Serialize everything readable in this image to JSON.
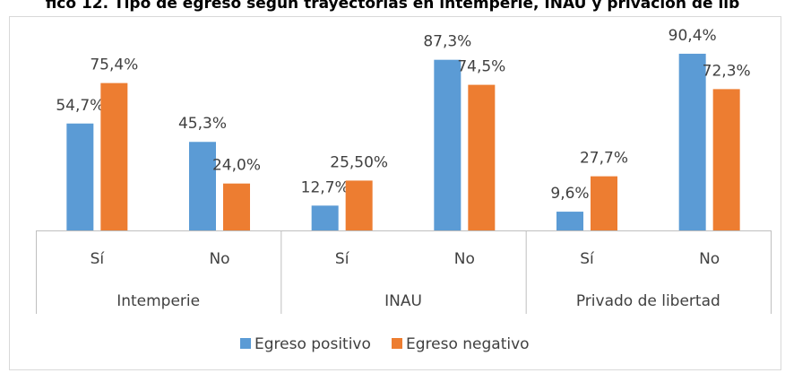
{
  "chart_data": {
    "type": "bar",
    "title": "fico 12. Tipo de egreso según trayectorias en intemperie, INAU y privación de lib",
    "categories": [
      "Sí",
      "No",
      "Sí",
      "No",
      "Sí",
      "No"
    ],
    "groups": [
      "Intemperie",
      "INAU",
      "Privado de libertad"
    ],
    "series": [
      {
        "name": "Egreso positivo",
        "color": "#5b9bd5",
        "values": [
          54.7,
          45.3,
          12.7,
          87.3,
          9.6,
          90.4
        ],
        "value_labels": [
          "54,7%",
          "45,3%",
          "12,7%",
          "87,3%",
          "9,6%",
          "90,4%"
        ]
      },
      {
        "name": "Egreso negativo",
        "color": "#ed7d31",
        "values": [
          75.4,
          24.0,
          25.5,
          74.5,
          27.7,
          72.3
        ],
        "value_labels": [
          "75,4%",
          "24,0%",
          "25,50%",
          "74,5%",
          "27,7%",
          "72,3%"
        ]
      }
    ],
    "ylim": [
      0,
      100
    ]
  }
}
